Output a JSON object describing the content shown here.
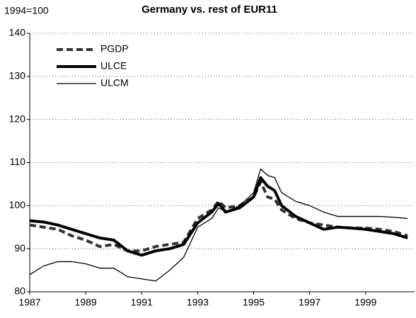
{
  "chart_data": {
    "type": "line",
    "title": "Germany vs. rest of EUR11",
    "y_label": "1994=100",
    "x": [
      1987,
      1987.5,
      1988,
      1988.5,
      1989,
      1989.5,
      1990,
      1990.5,
      1991,
      1991.5,
      1992,
      1992.5,
      1993,
      1993.5,
      1993.75,
      1994,
      1994.5,
      1995,
      1995.25,
      1995.5,
      1995.75,
      1996,
      1996.5,
      1997,
      1997.5,
      1998,
      1998.5,
      1999,
      1999.5,
      2000,
      2000.5
    ],
    "series": [
      {
        "name": "PGDP",
        "color": "#333333",
        "line_style": "dashed",
        "values": [
          95.5,
          95,
          94.5,
          93,
          92,
          90.5,
          91,
          89.5,
          89.5,
          90.5,
          91,
          91.5,
          97,
          99,
          101,
          99.5,
          100,
          102,
          105.5,
          102,
          101.5,
          99,
          97,
          96,
          95.5,
          95,
          94.8,
          94.8,
          94.5,
          94,
          93
        ]
      },
      {
        "name": "ULCE",
        "color": "#000000",
        "line_style": "thick",
        "values": [
          96.5,
          96.2,
          95.5,
          94.5,
          93.5,
          92.5,
          92,
          89.5,
          88.5,
          89.5,
          90,
          91,
          96,
          98.5,
          100.5,
          98.5,
          99.5,
          102,
          106.5,
          104.5,
          103.5,
          100,
          97.5,
          96,
          94.5,
          95,
          94.8,
          94.5,
          94,
          93.5,
          92.5
        ]
      },
      {
        "name": "ULCM",
        "color": "#000000",
        "line_style": "thin",
        "values": [
          84,
          86,
          87,
          87,
          86.5,
          85.5,
          85.5,
          83.5,
          83,
          82.5,
          85,
          88,
          95,
          97,
          99.5,
          98.5,
          100,
          103,
          108.5,
          107,
          106.5,
          103,
          101,
          100,
          98.5,
          97.5,
          97.5,
          97.5,
          97.5,
          97.3,
          97
        ]
      }
    ],
    "xlim": [
      1987,
      2000.75
    ],
    "xticks": [
      1987,
      1989,
      1991,
      1993,
      1995,
      1997,
      1999
    ],
    "ylim": [
      80,
      140
    ],
    "yticks": [
      80,
      90,
      100,
      110,
      120,
      130,
      140
    ],
    "grid": true,
    "legend": "upper left"
  }
}
